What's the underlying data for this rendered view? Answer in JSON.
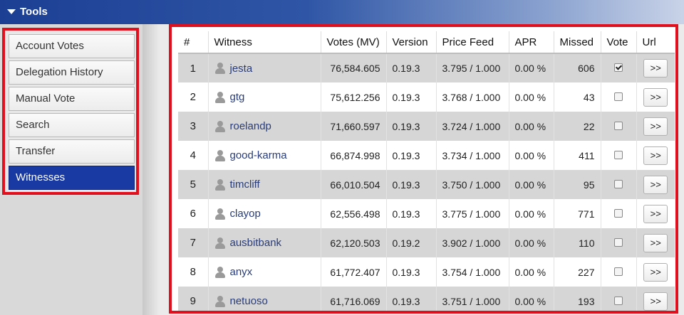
{
  "header": {
    "title": "Tools"
  },
  "sidebar": {
    "items": [
      {
        "label": "Account Votes",
        "active": false
      },
      {
        "label": "Delegation History",
        "active": false
      },
      {
        "label": "Manual Vote",
        "active": false
      },
      {
        "label": "Search",
        "active": false
      },
      {
        "label": "Transfer",
        "active": false
      },
      {
        "label": "Witnesses",
        "active": true
      }
    ]
  },
  "table": {
    "columns": [
      "#",
      "Witness",
      "Votes (MV)",
      "Version",
      "Price Feed",
      "APR",
      "Missed",
      "Vote",
      "Url"
    ],
    "rows": [
      {
        "rank": "1",
        "witness": "jesta",
        "votes": "76,584.605",
        "version": "0.19.3",
        "price_feed": "3.795 / 1.000",
        "apr": "0.00 %",
        "missed": "606",
        "voted": true,
        "url_label": ">>"
      },
      {
        "rank": "2",
        "witness": "gtg",
        "votes": "75,612.256",
        "version": "0.19.3",
        "price_feed": "3.768 / 1.000",
        "apr": "0.00 %",
        "missed": "43",
        "voted": false,
        "url_label": ">>"
      },
      {
        "rank": "3",
        "witness": "roelandp",
        "votes": "71,660.597",
        "version": "0.19.3",
        "price_feed": "3.724 / 1.000",
        "apr": "0.00 %",
        "missed": "22",
        "voted": false,
        "url_label": ">>"
      },
      {
        "rank": "4",
        "witness": "good-karma",
        "votes": "66,874.998",
        "version": "0.19.3",
        "price_feed": "3.734 / 1.000",
        "apr": "0.00 %",
        "missed": "411",
        "voted": false,
        "url_label": ">>"
      },
      {
        "rank": "5",
        "witness": "timcliff",
        "votes": "66,010.504",
        "version": "0.19.3",
        "price_feed": "3.750 / 1.000",
        "apr": "0.00 %",
        "missed": "95",
        "voted": false,
        "url_label": ">>"
      },
      {
        "rank": "6",
        "witness": "clayop",
        "votes": "62,556.498",
        "version": "0.19.3",
        "price_feed": "3.775 / 1.000",
        "apr": "0.00 %",
        "missed": "771",
        "voted": false,
        "url_label": ">>"
      },
      {
        "rank": "7",
        "witness": "ausbitbank",
        "votes": "62,120.503",
        "version": "0.19.2",
        "price_feed": "3.902 / 1.000",
        "apr": "0.00 %",
        "missed": "110",
        "voted": false,
        "url_label": ">>"
      },
      {
        "rank": "8",
        "witness": "anyx",
        "votes": "61,772.407",
        "version": "0.19.3",
        "price_feed": "3.754 / 1.000",
        "apr": "0.00 %",
        "missed": "227",
        "voted": false,
        "url_label": ">>"
      },
      {
        "rank": "9",
        "witness": "netuoso",
        "votes": "61,716.069",
        "version": "0.19.3",
        "price_feed": "3.751 / 1.000",
        "apr": "0.00 %",
        "missed": "193",
        "voted": false,
        "url_label": ">>"
      }
    ]
  },
  "icons": {
    "user": "user-icon",
    "collapse": "caret-down-icon"
  },
  "colors": {
    "active_nav": "#1a3aa3",
    "highlight_border": "#e0101e",
    "link": "#2a3d78"
  }
}
